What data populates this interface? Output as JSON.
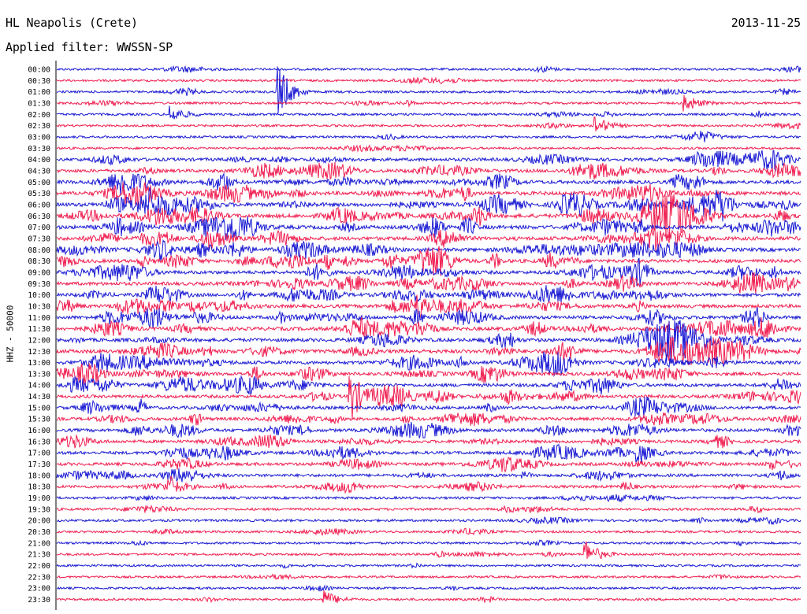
{
  "header": {
    "station": "HL Neapolis (Crete)",
    "date": "2013-11-25",
    "filter": "Applied filter: WWSSN-SP"
  },
  "chart_data": {
    "type": "line",
    "title": "HL Neapolis (Crete)",
    "subtitle": "Applied filter: WWSSN-SP",
    "date": "2013-11-25",
    "ylabel": "HHZ - 50000",
    "row_labels": [
      "00:00",
      "00:30",
      "01:00",
      "01:30",
      "02:00",
      "02:30",
      "03:00",
      "03:30",
      "04:00",
      "04:30",
      "05:00",
      "05:30",
      "06:00",
      "06:30",
      "07:00",
      "07:30",
      "08:00",
      "08:30",
      "09:00",
      "09:30",
      "10:00",
      "10:30",
      "11:00",
      "11:30",
      "12:00",
      "12:30",
      "13:00",
      "13:30",
      "14:00",
      "14:30",
      "15:00",
      "15:30",
      "16:00",
      "16:30",
      "17:00",
      "17:30",
      "18:00",
      "18:30",
      "19:00",
      "19:30",
      "20:00",
      "20:30",
      "21:00",
      "21:30",
      "22:00",
      "22:30",
      "23:00",
      "23:30"
    ],
    "minutes_per_row": 30,
    "activity_per_row": [
      0.12,
      0.08,
      0.15,
      0.14,
      0.15,
      0.1,
      0.14,
      0.1,
      0.5,
      0.55,
      0.65,
      0.7,
      0.75,
      0.8,
      0.75,
      0.7,
      0.7,
      0.65,
      0.6,
      0.6,
      0.55,
      0.6,
      0.6,
      0.65,
      0.65,
      0.7,
      0.6,
      0.55,
      0.55,
      0.5,
      0.5,
      0.5,
      0.5,
      0.45,
      0.45,
      0.45,
      0.4,
      0.35,
      0.2,
      0.2,
      0.18,
      0.15,
      0.12,
      0.12,
      0.1,
      0.1,
      0.1,
      0.1
    ],
    "events": [
      {
        "row": 2,
        "minute": 8.9,
        "amplitude": 1.0
      },
      {
        "row": 4,
        "minute": 4.6,
        "amplitude": 0.3
      },
      {
        "row": 3,
        "minute": 25.3,
        "amplitude": 0.35
      },
      {
        "row": 5,
        "minute": 21.7,
        "amplitude": 0.35
      },
      {
        "row": 29,
        "minute": 11.8,
        "amplitude": 1.0
      },
      {
        "row": 37,
        "minute": 4.5,
        "amplitude": 0.35
      },
      {
        "row": 34,
        "minute": 23.4,
        "amplitude": 0.45
      },
      {
        "row": 43,
        "minute": 21.3,
        "amplitude": 0.5
      },
      {
        "row": 47,
        "minute": 10.8,
        "amplitude": 0.3
      }
    ],
    "series": [
      {
        "name": "even rows",
        "color": "#1a1ad4"
      },
      {
        "name": "odd rows",
        "color": "#f01e50"
      }
    ],
    "grid": false
  }
}
